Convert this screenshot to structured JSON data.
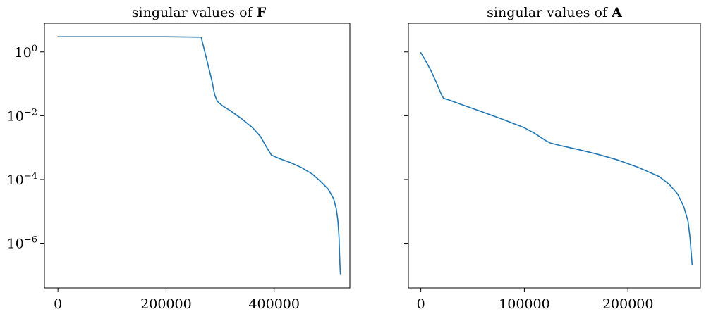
{
  "colors": {
    "line": "#1f77b4",
    "axis": "#000000",
    "background": "#ffffff"
  },
  "chart_data": [
    {
      "type": "line",
      "title_prefix": "singular values of ",
      "title_symbol": "F",
      "xlabel": "",
      "ylabel": "",
      "y_scale": "log",
      "xlim": [
        -25000,
        540000
      ],
      "ylim_log10": [
        -7.4,
        0.9
      ],
      "x_ticks": [
        {
          "value": 0,
          "label": "0"
        },
        {
          "value": 200000,
          "label": "200000"
        },
        {
          "value": 400000,
          "label": "400000"
        }
      ],
      "y_ticks": [
        {
          "exp": 0,
          "base": "10",
          "sup": "0"
        },
        {
          "exp": -2,
          "base": "10",
          "sup": "−2"
        },
        {
          "exp": -4,
          "base": "10",
          "sup": "−4"
        },
        {
          "exp": -6,
          "base": "10",
          "sup": "−6"
        }
      ],
      "show_y_tick_labels": true,
      "grid": false,
      "series": [
        {
          "x": [
            0,
            100000,
            200000,
            265000,
            275000,
            285000,
            290000,
            295000,
            305000,
            320000,
            340000,
            360000,
            375000,
            385000,
            395000,
            410000,
            430000,
            450000,
            470000,
            485000,
            500000,
            510000,
            515000,
            518000,
            520000,
            521000,
            522000,
            522500
          ],
          "y": [
            3.0,
            3.0,
            3.0,
            2.9,
            0.6,
            0.12,
            0.045,
            0.028,
            0.02,
            0.014,
            0.008,
            0.0042,
            0.0022,
            0.0011,
            0.00058,
            0.00045,
            0.00034,
            0.00024,
            0.00015,
            9e-05,
            5e-05,
            2.5e-05,
            1.2e-05,
            5e-06,
            1.5e-06,
            4.5e-07,
            1.6e-07,
            1.1e-07
          ]
        }
      ]
    },
    {
      "type": "line",
      "title_prefix": "singular values of ",
      "title_symbol": "A",
      "xlabel": "",
      "ylabel": "",
      "y_scale": "log",
      "xlim": [
        -12000,
        270000
      ],
      "ylim_log10": [
        -7.4,
        0.9
      ],
      "x_ticks": [
        {
          "value": 0,
          "label": "0"
        },
        {
          "value": 100000,
          "label": "100000"
        },
        {
          "value": 200000,
          "label": "200000"
        }
      ],
      "y_ticks": [
        {
          "exp": 0,
          "base": "10",
          "sup": "0"
        },
        {
          "exp": -2,
          "base": "10",
          "sup": "−2"
        },
        {
          "exp": -4,
          "base": "10",
          "sup": "−4"
        },
        {
          "exp": -6,
          "base": "10",
          "sup": "−6"
        }
      ],
      "show_y_tick_labels": false,
      "grid": false,
      "series": [
        {
          "x": [
            0,
            5000,
            10000,
            15000,
            20000,
            22000,
            25000,
            40000,
            60000,
            80000,
            100000,
            110000,
            120000,
            125000,
            135000,
            150000,
            170000,
            190000,
            210000,
            230000,
            240000,
            248000,
            254000,
            258000,
            260000,
            261000,
            262000
          ],
          "y": [
            0.95,
            0.5,
            0.25,
            0.11,
            0.045,
            0.035,
            0.033,
            0.022,
            0.013,
            0.0075,
            0.0042,
            0.0028,
            0.0017,
            0.0014,
            0.00115,
            0.0009,
            0.00063,
            0.00041,
            0.00024,
            0.000125,
            7e-05,
            3.5e-05,
            1.4e-05,
            5e-06,
            1.5e-06,
            5.5e-07,
            2.2e-07
          ]
        }
      ]
    }
  ]
}
